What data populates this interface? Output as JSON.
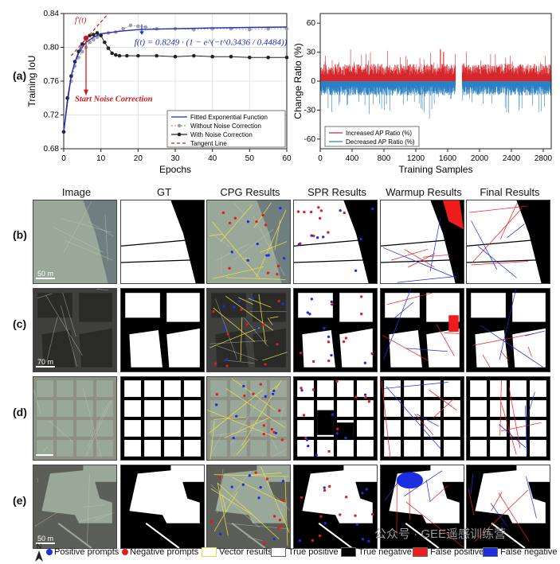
{
  "panel_labels": [
    "(a)",
    "(b)",
    "(c)",
    "(d)",
    "(e)"
  ],
  "chart_data": [
    {
      "type": "line",
      "xlabel": "Epochs",
      "ylabel": "Training IoU",
      "xlim": [
        0,
        60
      ],
      "ylim": [
        0.68,
        0.84
      ],
      "xticks": [
        0,
        10,
        20,
        30,
        40,
        50,
        60
      ],
      "yticks": [
        0.68,
        0.72,
        0.76,
        0.8,
        0.84
      ],
      "grid": true,
      "legend_position": "bottom-right",
      "annotations": {
        "formula": "f(t) = 0.8249 · (1 − e^(−t^0.3436 / 0.4484))",
        "fprime": "f'(t)",
        "start_noise": "Start Noise Correction"
      },
      "series": [
        {
          "name": "Fitted Exponential Function",
          "color": "#1f2fbf",
          "x": [
            0,
            1,
            2,
            3,
            4,
            5,
            6,
            8,
            10,
            15,
            20,
            30,
            40,
            50,
            60
          ],
          "y": [
            0.7,
            0.735,
            0.766,
            0.782,
            0.793,
            0.8,
            0.806,
            0.812,
            0.816,
            0.819,
            0.821,
            0.822,
            0.823,
            0.8235,
            0.824
          ]
        },
        {
          "name": "Without Noise Correction",
          "color": "#a0a0a0",
          "x": [
            0,
            1,
            2,
            3,
            4,
            5,
            6,
            7,
            8,
            9,
            10,
            12,
            14,
            16,
            18,
            20,
            22,
            25,
            30,
            35,
            40,
            45,
            50,
            55,
            60
          ],
          "y": [
            0.7,
            0.74,
            0.76,
            0.778,
            0.788,
            0.795,
            0.8,
            0.806,
            0.809,
            0.812,
            0.815,
            0.817,
            0.818,
            0.822,
            0.826,
            0.825,
            0.824,
            0.822,
            0.822,
            0.821,
            0.822,
            0.822,
            0.821,
            0.822,
            0.822
          ]
        },
        {
          "name": "With Noise Correction",
          "color": "#222222",
          "x": [
            0,
            1,
            2,
            3,
            4,
            5,
            6,
            7,
            8,
            9,
            10,
            11,
            12,
            13,
            14,
            15,
            17,
            20,
            25,
            30,
            35,
            40,
            45,
            50,
            55,
            60
          ],
          "y": [
            0.7,
            0.74,
            0.766,
            0.783,
            0.795,
            0.804,
            0.811,
            0.814,
            0.815,
            0.817,
            0.814,
            0.806,
            0.799,
            0.793,
            0.791,
            0.79,
            0.79,
            0.79,
            0.79,
            0.789,
            0.79,
            0.789,
            0.789,
            0.788,
            0.788,
            0.788
          ]
        },
        {
          "name": "Tangent Line",
          "color": "#d21a1a",
          "x": [
            2,
            12
          ],
          "y": [
            0.79,
            0.84
          ]
        }
      ]
    },
    {
      "type": "bar",
      "xlabel": "Training Samples",
      "ylabel": "Change Ratio (%)",
      "xlim": [
        0,
        2900
      ],
      "ylim": [
        -70,
        70
      ],
      "xticks": [
        0,
        400,
        800,
        1200,
        1600,
        2000,
        2400,
        2800
      ],
      "yticks": [
        -60,
        -30,
        0,
        30,
        60
      ],
      "legend_position": "bottom-left",
      "series": [
        {
          "name": "Increased AP Ratio (%)",
          "color": "#d6262b"
        },
        {
          "name": "Decreased AP Ratio (%)",
          "color": "#2a7fc4"
        }
      ]
    }
  ],
  "columns": [
    "Image",
    "GT",
    "CPG Results",
    "SPR Results",
    "Warmup Results",
    "Final Results"
  ],
  "scale_labels": [
    "50 m",
    "70 m",
    "",
    "50 m"
  ],
  "north_label": "N",
  "legend": {
    "positive": "Positive prompts",
    "negative": "Negative prompts",
    "vector": "Vector results",
    "tp": "True positive",
    "tn": "True negative",
    "fp": "False positive",
    "fn": "False negative"
  },
  "watermark": "公众号 · GEE遥感训练营",
  "colors": {
    "fitted": "#1f2fbf",
    "tangent": "#d21a1a",
    "increase": "#d6262b",
    "decrease": "#2a7fc4",
    "fp": "#ee1c1c",
    "fn": "#1c2fe0",
    "vector": "#f0e04a"
  }
}
